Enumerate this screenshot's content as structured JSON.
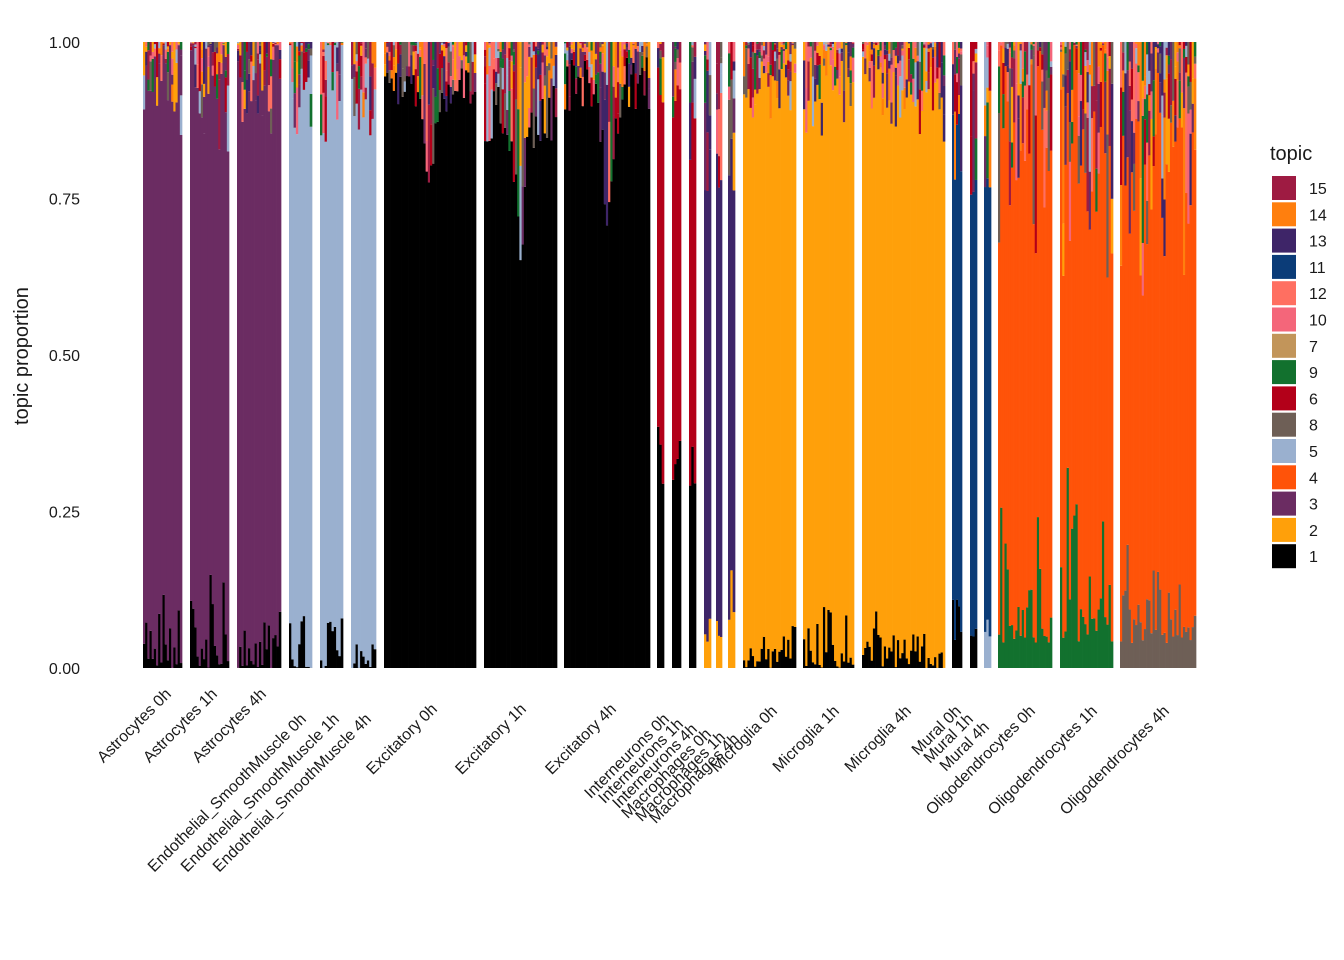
{
  "chart_data": {
    "type": "bar",
    "subtype": "stacked-structure-plot",
    "title": "",
    "xlabel": "",
    "ylabel": "topic proportion",
    "ylim": [
      0,
      1
    ],
    "yticks": [
      "0.00",
      "0.25",
      "0.50",
      "0.75",
      "1.00"
    ],
    "grid": false,
    "legend": {
      "title": "topic",
      "placement": "right",
      "entries": [
        {
          "topic": "15",
          "color": "#9E1B42"
        },
        {
          "topic": "14",
          "color": "#FF7F0E"
        },
        {
          "topic": "13",
          "color": "#3E2568"
        },
        {
          "topic": "11",
          "color": "#0B3C78"
        },
        {
          "topic": "12",
          "color": "#FF6F61"
        },
        {
          "topic": "10",
          "color": "#F4667A"
        },
        {
          "topic": "7",
          "color": "#C2955A"
        },
        {
          "topic": "9",
          "color": "#12712E"
        },
        {
          "topic": "6",
          "color": "#B30019"
        },
        {
          "topic": "8",
          "color": "#6E5F56"
        },
        {
          "topic": "5",
          "color": "#9AB0CF"
        },
        {
          "topic": "4",
          "color": "#FF5309"
        },
        {
          "topic": "3",
          "color": "#6B2C62"
        },
        {
          "topic": "2",
          "color": "#FFA00A"
        },
        {
          "topic": "1",
          "color": "#000000"
        }
      ]
    },
    "groups": [
      {
        "label": "Astrocytes 0h",
        "dominant": "3",
        "dom_range": [
          0.84,
          0.96
        ],
        "dip": 0.0,
        "second": "1",
        "second_range": [
          0.0,
          0.14
        ]
      },
      {
        "label": "Astrocytes 1h",
        "dominant": "3",
        "dom_range": [
          0.8,
          0.96
        ],
        "dip": 0.0,
        "second": "1",
        "second_range": [
          0.0,
          0.18
        ]
      },
      {
        "label": "Astrocytes 4h",
        "dominant": "3",
        "dom_range": [
          0.82,
          0.97
        ],
        "dip": 0.0,
        "second": "1",
        "second_range": [
          0.0,
          0.12
        ]
      },
      {
        "label": "Endothelial_SmoothMuscle 0h",
        "dominant": "5",
        "dom_range": [
          0.84,
          0.96
        ],
        "dip": 0.0,
        "second": "1",
        "second_range": [
          0.0,
          0.12
        ]
      },
      {
        "label": "Endothelial_SmoothMuscle 1h",
        "dominant": "5",
        "dom_range": [
          0.82,
          0.97
        ],
        "dip": 0.0,
        "second": "1",
        "second_range": [
          0.0,
          0.12
        ]
      },
      {
        "label": "Endothelial_SmoothMuscle 4h",
        "dominant": "5",
        "dom_range": [
          0.83,
          0.97
        ],
        "dip": 0.0,
        "second": "1",
        "second_range": [
          0.0,
          0.1
        ]
      },
      {
        "label": "Excitatory 0h",
        "dominant": "1",
        "dom_range": [
          0.9,
          0.96
        ],
        "dip": 0.18,
        "second": "6",
        "second_range": [
          0.02,
          0.1
        ]
      },
      {
        "label": "Excitatory 1h",
        "dominant": "1",
        "dom_range": [
          0.84,
          0.93
        ],
        "dip": 0.26,
        "second": "6",
        "second_range": [
          0.04,
          0.14
        ]
      },
      {
        "label": "Excitatory 4h",
        "dominant": "1",
        "dom_range": [
          0.88,
          0.98
        ],
        "dip": 0.2,
        "second": "6",
        "second_range": [
          0.02,
          0.1
        ]
      },
      {
        "label": "Interneurons 0h",
        "dominant": "6",
        "dom_range": [
          0.55,
          0.7
        ],
        "dip": 0.0,
        "second": "1",
        "second_range": [
          0.25,
          0.4
        ]
      },
      {
        "label": "Interneurons 1h",
        "dominant": "6",
        "dom_range": [
          0.5,
          0.6
        ],
        "dip": 0.0,
        "second": "1",
        "second_range": [
          0.3,
          0.42
        ]
      },
      {
        "label": "Interneurons 4h",
        "dominant": "6",
        "dom_range": [
          0.52,
          0.65
        ],
        "dip": 0.0,
        "second": "1",
        "second_range": [
          0.28,
          0.4
        ]
      },
      {
        "label": "Macrophages 0h",
        "dominant": "13",
        "dom_range": [
          0.7,
          0.75
        ],
        "dip": 0.0,
        "second": "2",
        "second_range": [
          0.04,
          0.12
        ]
      },
      {
        "label": "Macrophages 1h",
        "dominant": "13",
        "dom_range": [
          0.68,
          0.75
        ],
        "dip": 0.0,
        "second": "2",
        "second_range": [
          0.04,
          0.18
        ]
      },
      {
        "label": "Macrophages 4h",
        "dominant": "13",
        "dom_range": [
          0.62,
          0.72
        ],
        "dip": 0.0,
        "second": "2",
        "second_range": [
          0.04,
          0.2
        ]
      },
      {
        "label": "Microglia 0h",
        "dominant": "2",
        "dom_range": [
          0.86,
          0.96
        ],
        "dip": 0.0,
        "second": "1",
        "second_range": [
          0.0,
          0.1
        ]
      },
      {
        "label": "Microglia 1h",
        "dominant": "2",
        "dom_range": [
          0.84,
          0.95
        ],
        "dip": 0.0,
        "second": "1",
        "second_range": [
          0.0,
          0.12
        ]
      },
      {
        "label": "Microglia 4h",
        "dominant": "2",
        "dom_range": [
          0.84,
          0.96
        ],
        "dip": 0.0,
        "second": "1",
        "second_range": [
          0.0,
          0.1
        ]
      },
      {
        "label": "Mural 0h",
        "dominant": "11",
        "dom_range": [
          0.72,
          0.8
        ],
        "dip": 0.0,
        "second": "1",
        "second_range": [
          0.04,
          0.16
        ]
      },
      {
        "label": "Mural 1h",
        "dominant": "11",
        "dom_range": [
          0.7,
          0.8
        ],
        "dip": 0.0,
        "second": "1",
        "second_range": [
          0.04,
          0.12
        ]
      },
      {
        "label": "Mural 4h",
        "dominant": "11",
        "dom_range": [
          0.7,
          0.78
        ],
        "dip": 0.0,
        "second": "5",
        "second_range": [
          0.04,
          0.12
        ]
      },
      {
        "label": "Oligodendrocytes 0h",
        "dominant": "4",
        "dom_range": [
          0.62,
          0.85
        ],
        "dip": 0.0,
        "second": "9",
        "second_range": [
          0.04,
          0.3
        ]
      },
      {
        "label": "Oligodendrocytes 1h",
        "dominant": "4",
        "dom_range": [
          0.55,
          0.82
        ],
        "dip": 0.0,
        "second": "9",
        "second_range": [
          0.04,
          0.35
        ]
      },
      {
        "label": "Oligodendrocytes 4h",
        "dominant": "4",
        "dom_range": [
          0.55,
          0.82
        ],
        "dip": 0.0,
        "second": "8",
        "second_range": [
          0.04,
          0.25
        ]
      }
    ]
  }
}
